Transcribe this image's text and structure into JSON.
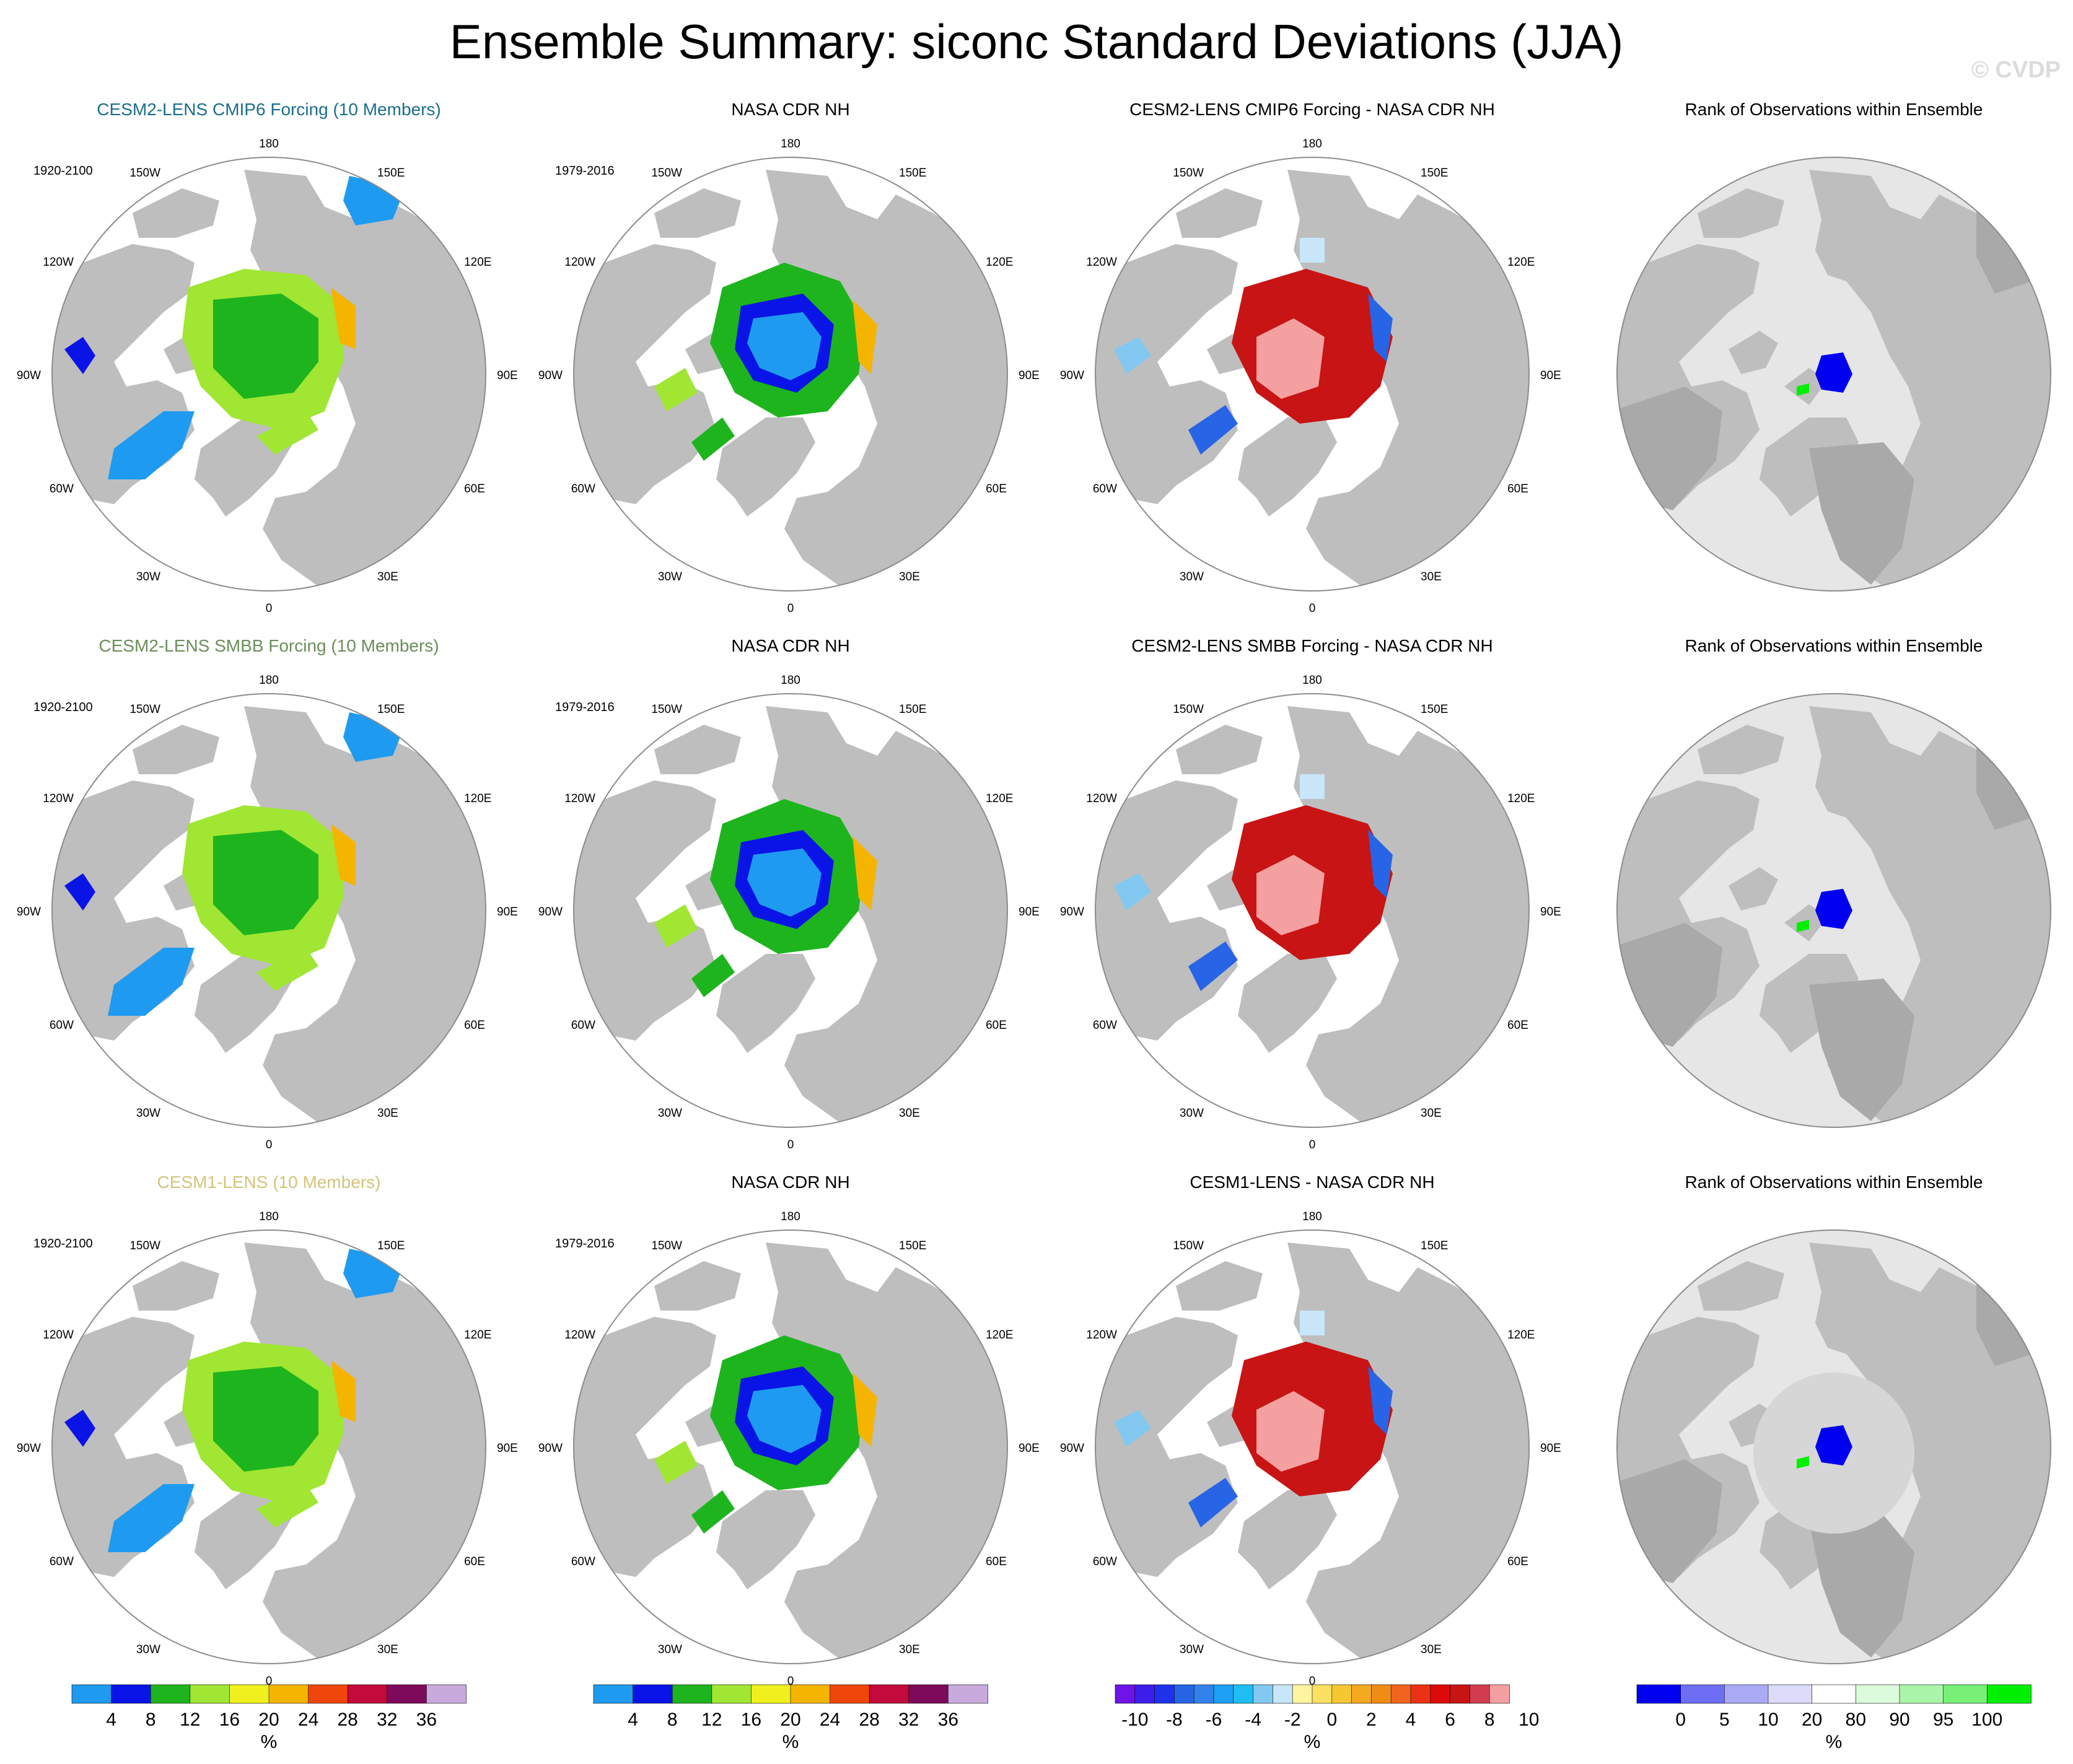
{
  "title": "Ensemble Summary: siconc Standard Deviations (JJA)",
  "credit": "© CVDP",
  "longitude_labels": {
    "top": "180",
    "bottom": "0",
    "left_upper": "150W",
    "right_upper": "150E",
    "left_mid_upper": "120W",
    "right_mid_upper": "120E",
    "left_mid": "90W",
    "right_mid": "90E",
    "left_mid_lower": "60W",
    "right_mid_lower": "60E",
    "left_lower": "30W",
    "right_lower": "30E"
  },
  "rows": [
    {
      "model": {
        "title": "CESM2-LENS CMIP6 Forcing (10 Members)",
        "title_color": "#1a6e8c",
        "period": "1920-2100"
      },
      "obs": {
        "title": "NASA CDR NH",
        "period": "1979-2016"
      },
      "diff": {
        "title": "CESM2-LENS CMIP6 Forcing - NASA CDR NH"
      },
      "rank": {
        "title": "Rank of Observations within Ensemble"
      }
    },
    {
      "model": {
        "title": "CESM2-LENS SMBB Forcing (10 Members)",
        "title_color": "#6a8e5a",
        "period": "1920-2100"
      },
      "obs": {
        "title": "NASA CDR NH",
        "period": "1979-2016"
      },
      "diff": {
        "title": "CESM2-LENS SMBB Forcing - NASA CDR NH"
      },
      "rank": {
        "title": "Rank of Observations within Ensemble"
      }
    },
    {
      "model": {
        "title": "CESM1-LENS (10 Members)",
        "title_color": "#d4c47a",
        "period": "1920-2100"
      },
      "obs": {
        "title": "NASA CDR NH",
        "period": "1979-2016"
      },
      "diff": {
        "title": "CESM1-LENS - NASA CDR NH"
      },
      "rank": {
        "title": "Rank of Observations within Ensemble"
      }
    }
  ],
  "colorbars": [
    {
      "name": "std-dev-colorbar",
      "units": "%",
      "colors": [
        "#1e9bf0",
        "#0a14e6",
        "#1eb41e",
        "#a0e632",
        "#f0f01e",
        "#f5b400",
        "#f0460a",
        "#c30a3c",
        "#7d0a5a",
        "#c8aadc"
      ],
      "tick_labels": [
        "4",
        "8",
        "12",
        "16",
        "20",
        "24",
        "28",
        "32",
        "36"
      ]
    },
    {
      "name": "std-dev-colorbar-obs",
      "units": "%",
      "colors": [
        "#1e9bf0",
        "#0a14e6",
        "#1eb41e",
        "#a0e632",
        "#f0f01e",
        "#f5b400",
        "#f0460a",
        "#c30a3c",
        "#7d0a5a",
        "#c8aadc"
      ],
      "tick_labels": [
        "4",
        "8",
        "12",
        "16",
        "20",
        "24",
        "28",
        "32",
        "36"
      ]
    },
    {
      "name": "difference-colorbar",
      "units": "%",
      "colors": [
        "#6e14e6",
        "#3c1eeb",
        "#1e32eb",
        "#2864e6",
        "#3282eb",
        "#1ea0f5",
        "#1ebef5",
        "#82c8f0",
        "#c8e6fa",
        "#fff5a0",
        "#fae164",
        "#f5c832",
        "#f5aa1e",
        "#f08c14",
        "#f0641e",
        "#eb3214",
        "#dc0a0a",
        "#c81414",
        "#d23c50",
        "#f5a0a0"
      ],
      "tick_labels": [
        "-10",
        "-8",
        "-6",
        "-4",
        "-2",
        "0",
        "2",
        "4",
        "6",
        "8",
        "10"
      ]
    },
    {
      "name": "rank-colorbar",
      "units": "%",
      "colors": [
        "#0000f0",
        "#6e6ef5",
        "#aaaaf5",
        "#dcdcfa",
        "#ffffff",
        "#dcfadc",
        "#aaf5aa",
        "#78f078",
        "#00f000"
      ],
      "tick_labels": [
        "0",
        "5",
        "10",
        "20",
        "80",
        "90",
        "95",
        "100"
      ]
    }
  ]
}
